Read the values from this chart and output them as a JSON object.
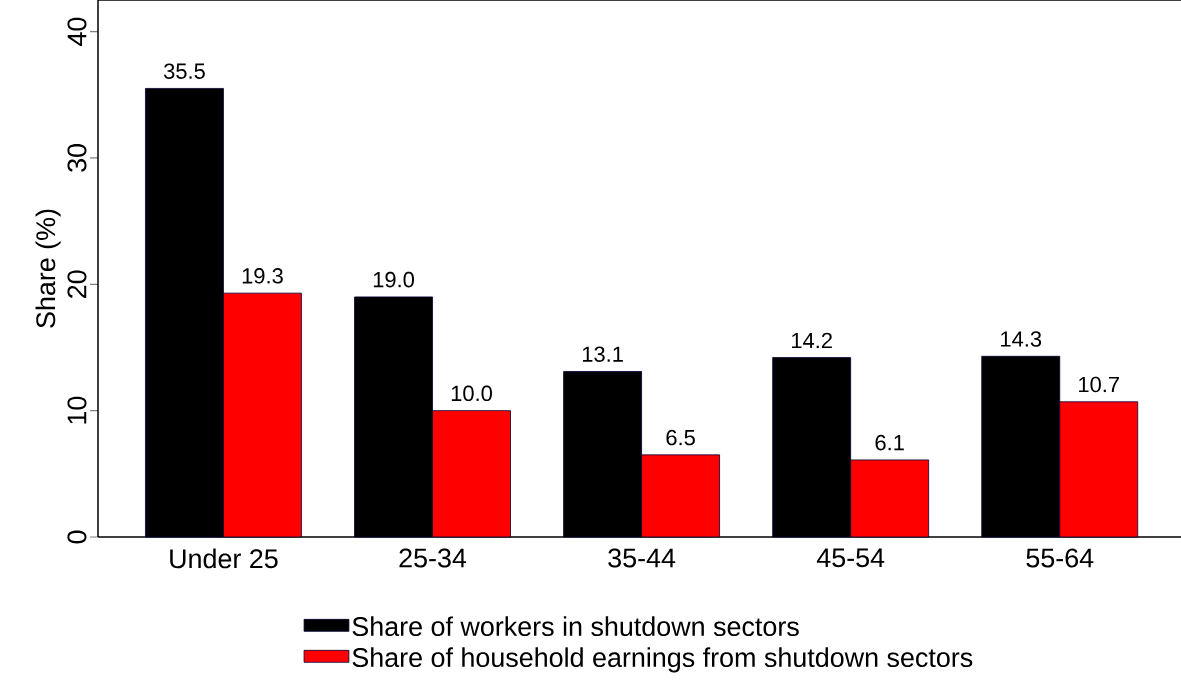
{
  "chart_data": {
    "type": "bar",
    "ylabel": "Share (%)",
    "categories": [
      "Under 25",
      "25-34",
      "35-44",
      "45-54",
      "55-64"
    ],
    "series": [
      {
        "name": "Share of workers in shutdown sectors",
        "color": "#000000",
        "values": [
          35.5,
          19.0,
          13.1,
          14.2,
          14.3
        ],
        "value_labels": [
          "35.5",
          "19.0",
          "13.1",
          "14.2",
          "14.3"
        ]
      },
      {
        "name": "Share of household earnings from shutdown sectors",
        "color": "#ff0000",
        "values": [
          19.3,
          10.0,
          6.5,
          6.1,
          10.7
        ],
        "value_labels": [
          "19.3",
          "10.0",
          "6.5",
          "6.1",
          "10.7"
        ]
      }
    ],
    "ylim": [
      0,
      42.5
    ],
    "yticks": [
      0,
      10,
      20,
      30,
      40
    ],
    "legend": "bottom",
    "grid": false
  }
}
